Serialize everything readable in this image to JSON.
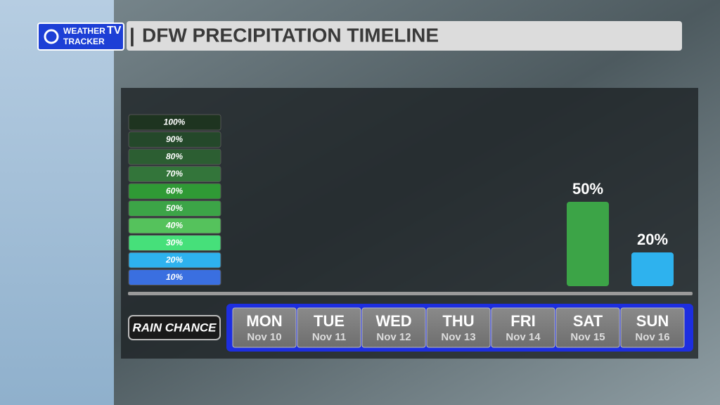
{
  "logo": {
    "line1": "WEATHER",
    "line2": "TRACKER",
    "badge": "TV"
  },
  "chart_data": {
    "type": "bar",
    "title": "DFW PRECIPITATION TIMELINE",
    "row_label": "RAIN CHANCE",
    "categories": [
      "MON",
      "TUE",
      "WED",
      "THU",
      "FRI",
      "SAT",
      "SUN"
    ],
    "dates": [
      "Nov 10",
      "Nov 11",
      "Nov 12",
      "Nov 13",
      "Nov 14",
      "Nov 15",
      "Nov 16"
    ],
    "values": [
      null,
      null,
      null,
      null,
      null,
      50,
      20
    ],
    "value_labels": [
      null,
      null,
      null,
      null,
      null,
      "50%",
      "20%"
    ],
    "ylim": [
      0,
      100
    ],
    "color_scale": [
      {
        "value": 100,
        "label": "100%",
        "color": "#1e3420"
      },
      {
        "value": 90,
        "label": "90%",
        "color": "#24482a"
      },
      {
        "value": 80,
        "label": "80%",
        "color": "#2c5e32"
      },
      {
        "value": 70,
        "label": "70%",
        "color": "#33753a"
      },
      {
        "value": 60,
        "label": "60%",
        "color": "#2f9a35"
      },
      {
        "value": 50,
        "label": "50%",
        "color": "#3ca447"
      },
      {
        "value": 40,
        "label": "40%",
        "color": "#55c25c"
      },
      {
        "value": 30,
        "label": "30%",
        "color": "#46e07a"
      },
      {
        "value": 20,
        "label": "20%",
        "color": "#2eb2ee"
      },
      {
        "value": 10,
        "label": "10%",
        "color": "#3a6fe0"
      }
    ]
  }
}
